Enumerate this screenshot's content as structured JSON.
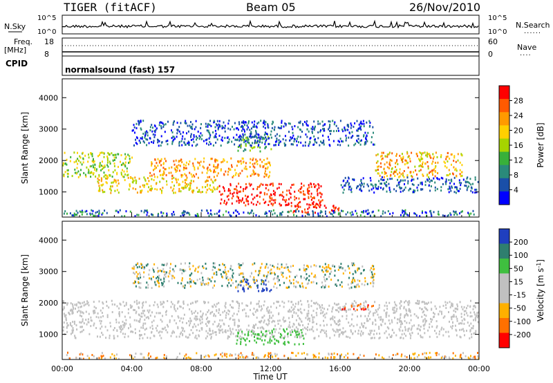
{
  "header": {
    "title": "TIGER (fitACF)",
    "beam": "Beam 05",
    "date": "26/Nov/2010"
  },
  "status_panels": {
    "nsky_label": "N.Sky",
    "nsearch_label": "N.Search",
    "nsky_ticks": [
      "10^5",
      "10^0"
    ],
    "nsearch_ticks": [
      "10^5",
      "10^0"
    ],
    "freq_label_1": "Freq.",
    "freq_label_2": "[MHz]",
    "freq_ticks": [
      "18",
      "8"
    ],
    "nave_label": "Nave",
    "nave_ticks": [
      "60",
      "0"
    ],
    "cpid_label": "CPID",
    "cpid_value": "normalsound (fast) 157"
  },
  "chart_data": [
    {
      "type": "heatmap",
      "ylabel": "Slant Range [km]",
      "y_ticks": [
        "1000",
        "2000",
        "3000",
        "4000"
      ],
      "ylim": [
        200,
        4600
      ],
      "xlim": [
        0,
        24
      ],
      "colorbar": {
        "label": "Power [dB]",
        "ticks": [
          "28",
          "24",
          "20",
          "16",
          "12",
          "8",
          "4"
        ],
        "colors": [
          "#ff0000",
          "#ff5a00",
          "#ff9a00",
          "#ffd000",
          "#a6d400",
          "#38b03a",
          "#2a8a7a",
          "#1a4fa8",
          "#0000ff"
        ]
      }
    },
    {
      "type": "heatmap",
      "ylabel": "Slant Range [km]",
      "y_ticks": [
        "1000",
        "2000",
        "3000",
        "4000"
      ],
      "xlabel": "Time UT",
      "x_ticks": [
        "00:00",
        "04:00",
        "08:00",
        "12:00",
        "16:00",
        "20:00",
        "00:00"
      ],
      "ylim": [
        200,
        4600
      ],
      "xlim": [
        0,
        24
      ],
      "colorbar": {
        "label": "Velocity [m s",
        "label_sup": "-1",
        "label_end": "]",
        "ticks": [
          "200",
          "100",
          "50",
          "15",
          "-15",
          "-50",
          "-100",
          "-200"
        ],
        "colors": [
          "#1f3fbf",
          "#2f7f6f",
          "#3fbf3f",
          "#c0c0c0",
          "#c0c0c0",
          "#ffb000",
          "#ff7000",
          "#ff0000"
        ]
      }
    }
  ]
}
